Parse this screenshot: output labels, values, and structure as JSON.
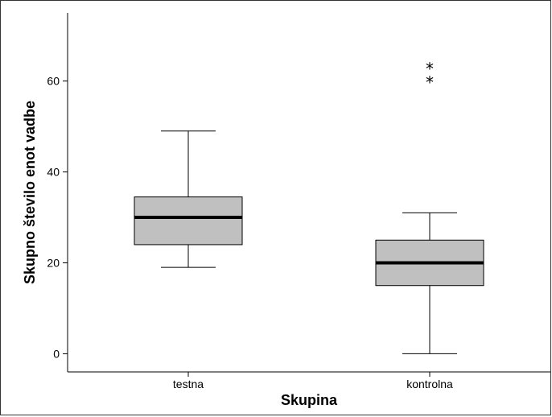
{
  "chart_data": {
    "type": "boxplot",
    "title": "",
    "xlabel": "Skupina",
    "ylabel": "Skupno število enot vadbe",
    "ylim": [
      -4,
      75
    ],
    "yticks": [
      0,
      20,
      40,
      60
    ],
    "grid": false,
    "categories": [
      "testna",
      "kontrolna"
    ],
    "boxes": [
      {
        "category": "testna",
        "whisker_low": 19,
        "q1": 24,
        "median": 30,
        "q3": 34.5,
        "whisker_high": 49,
        "outliers": []
      },
      {
        "category": "kontrolna",
        "whisker_low": 0,
        "q1": 15,
        "median": 20,
        "q3": 25,
        "whisker_high": 31,
        "outliers": [
          60,
          63
        ]
      }
    ],
    "outlier_marker": "*",
    "box_fill": "#c0c0c0",
    "line_color": "#000000"
  }
}
